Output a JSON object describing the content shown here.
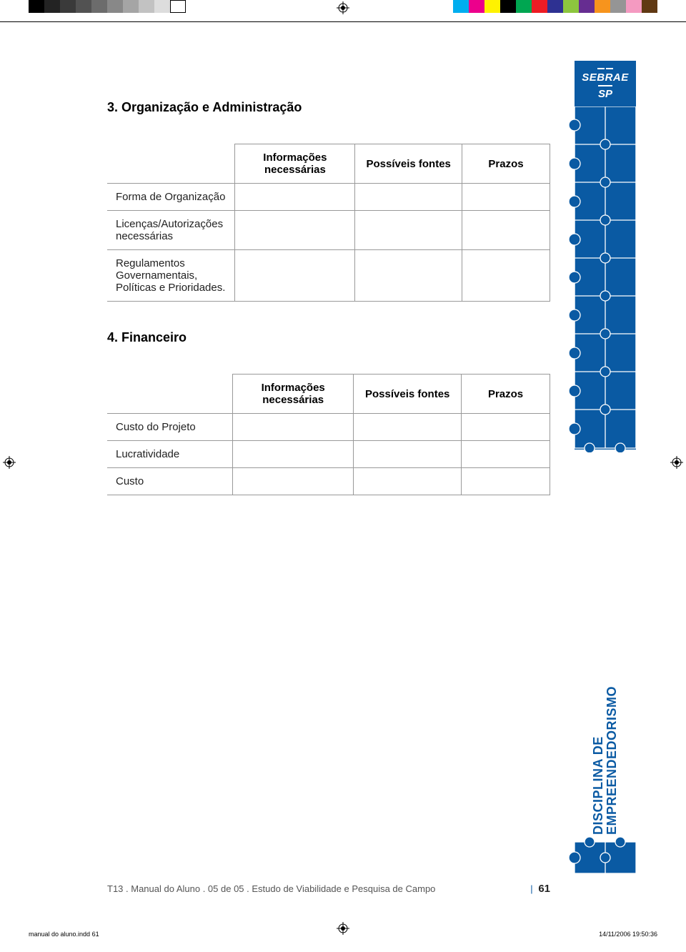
{
  "colorbar": {
    "left": [
      "#000000",
      "#232323",
      "#3a3a3a",
      "#525252",
      "#6c6c6c",
      "#888888",
      "#a5a5a5",
      "#c2c2c2",
      "#dddddd",
      "#ffffff"
    ],
    "right": [
      "#00aeef",
      "#ec008c",
      "#fff200",
      "#000000",
      "#00a651",
      "#ed1c24",
      "#2e3192",
      "#8dc63f",
      "#662d91",
      "#f7941d",
      "#959595",
      "#f49ac1",
      "#603913"
    ]
  },
  "sections": [
    {
      "heading": "3. Organização e Administração",
      "columns": [
        "Informações necessárias",
        "Possíveis fontes",
        "Prazos"
      ],
      "rows": [
        "Forma de Organização",
        "Licenças/Autorizações necessárias",
        "Regulamentos Governamentais, Políticas e Prioridades."
      ]
    },
    {
      "heading": "4. Financeiro",
      "columns": [
        "Informações necessárias",
        "Possíveis fontes",
        "Prazos"
      ],
      "rows": [
        "Custo do Projeto",
        "Lucratividade",
        "Custo"
      ]
    }
  ],
  "sidebar": {
    "logo_line1": "SEBRAE",
    "logo_line2": "SP",
    "brand_color": "#0a5aa3"
  },
  "vertical_label_line1": "DISCIPLINA DE",
  "vertical_label_line2": "EMPREENDEDORISMO",
  "footer": {
    "text": "T13 . Manual do Aluno . 05 de 05 . Estudo de Viabilidade e Pesquisa de Campo",
    "page_number": "61"
  },
  "indesign": {
    "file": "manual do aluno.indd   61",
    "timestamp": "14/11/2006   19:50:36"
  }
}
